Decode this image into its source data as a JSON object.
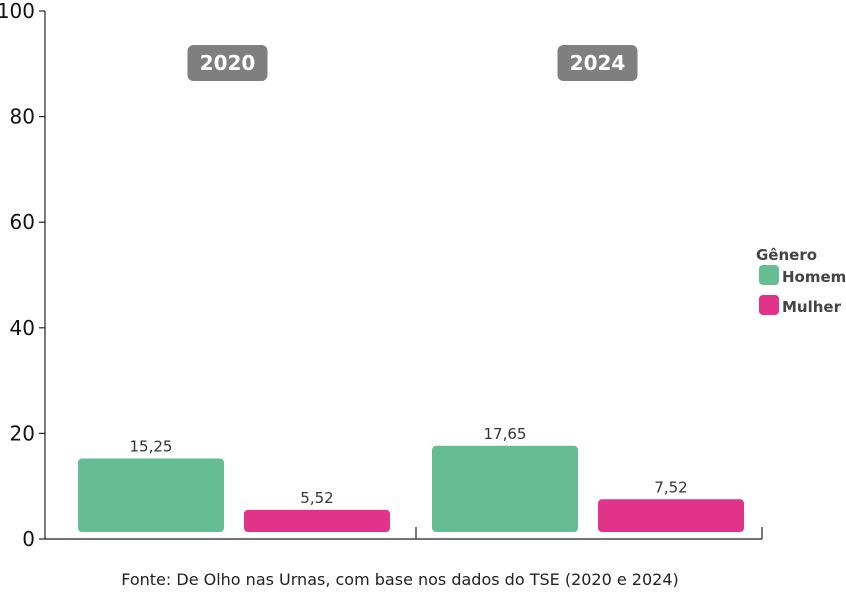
{
  "chart_data": {
    "type": "bar",
    "categories": [
      "2020",
      "2024"
    ],
    "series": [
      {
        "name": "Homem",
        "values": [
          15.25,
          17.65
        ],
        "labels": [
          "15,25",
          "17,65"
        ],
        "color": "#66bd93"
      },
      {
        "name": "Mulher",
        "values": [
          5.52,
          7.52
        ],
        "labels": [
          "5,52",
          "7,52"
        ],
        "color": "#e2338b"
      }
    ],
    "ylim": [
      0,
      100
    ],
    "yticks": [
      "0",
      "20",
      "40",
      "60",
      "80",
      "100"
    ],
    "legend": {
      "title": "Gênero",
      "placement": "right"
    },
    "grid": false,
    "year_badge_color": "#7f7f7f"
  },
  "source": "Fonte: De Olho nas Urnas, com base nos dados do TSE (2020 e 2024)"
}
